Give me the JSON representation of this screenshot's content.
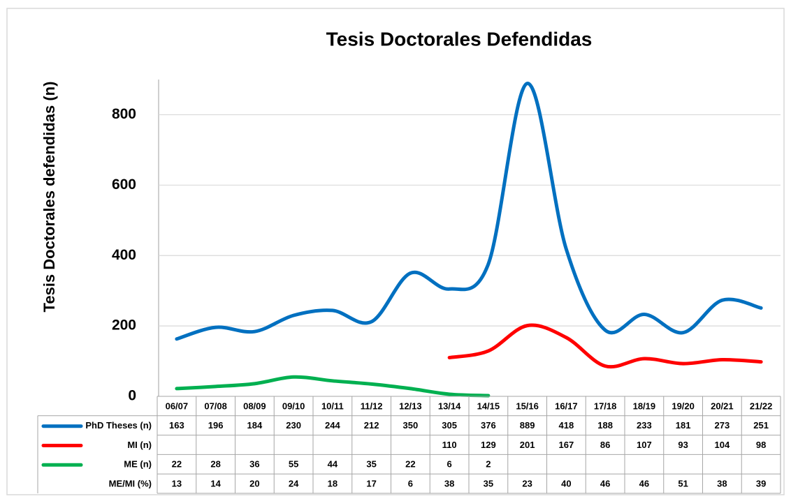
{
  "chart_data": {
    "type": "line",
    "title": "Tesis Doctorales Defendidas",
    "y_label": "Tesis Doctorales defendidas (n)",
    "categories": [
      "06/07",
      "07/08",
      "08/09",
      "09/10",
      "10/11",
      "11/12",
      "12/13",
      "13/14",
      "14/15",
      "15/16",
      "16/17",
      "17/18",
      "18/19",
      "19/20",
      "20/21",
      "21/22"
    ],
    "series": [
      {
        "name": "PhD Theses (n)",
        "color": "#0070c0",
        "values": [
          163,
          196,
          184,
          230,
          244,
          212,
          350,
          305,
          376,
          889,
          418,
          188,
          233,
          181,
          273,
          251
        ]
      },
      {
        "name": "MI (n)",
        "color": "#ff0000",
        "values": [
          null,
          null,
          null,
          null,
          null,
          null,
          null,
          110,
          129,
          201,
          167,
          86,
          107,
          93,
          104,
          98
        ]
      },
      {
        "name": "ME (n)",
        "color": "#00b050",
        "values": [
          22,
          28,
          36,
          55,
          44,
          35,
          22,
          6,
          2,
          null,
          null,
          null,
          null,
          null,
          null,
          null
        ]
      },
      {
        "name": "ME/MI (%)",
        "values": [
          13,
          14,
          20,
          24,
          18,
          17,
          6,
          38,
          35,
          23,
          40,
          46,
          46,
          51,
          38,
          39
        ]
      }
    ],
    "ylim": [
      0,
      900
    ],
    "yticks": [
      0,
      200,
      400,
      600,
      800
    ],
    "grid": true,
    "smooth": true
  }
}
